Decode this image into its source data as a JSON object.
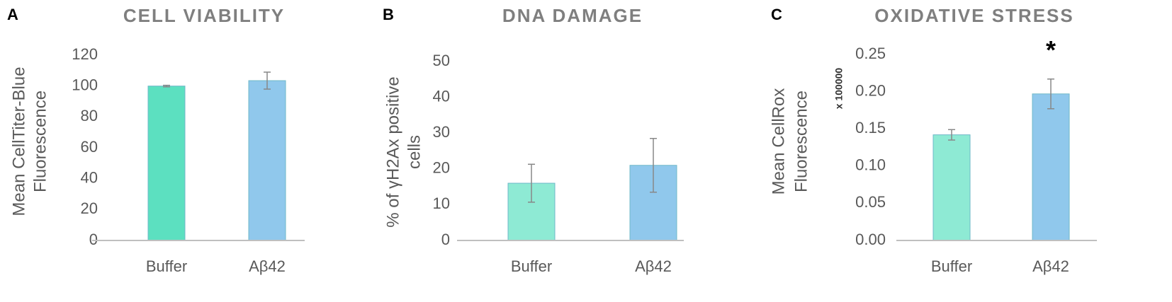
{
  "chart_data": [
    {
      "type": "bar",
      "panel_label": "A",
      "title": "CELL VIABILITY",
      "ylabel": [
        "Mean CellTiter-Blue",
        "Fluorescence"
      ],
      "categories": [
        "Buffer",
        "Aβ42"
      ],
      "values": [
        100,
        103.5
      ],
      "errors": [
        0.5,
        5.5
      ],
      "colors": [
        "#5ce0c0",
        "#90c8ec"
      ],
      "ylim": [
        0,
        120
      ],
      "yticks": [
        0,
        20,
        40,
        60,
        80,
        100,
        120
      ]
    },
    {
      "type": "bar",
      "panel_label": "B",
      "title": "DNA DAMAGE",
      "ylabel": [
        "% of γH2Ax positive",
        "cells"
      ],
      "categories": [
        "Buffer",
        "Aβ42"
      ],
      "values": [
        16,
        21
      ],
      "errors": [
        5.3,
        7.5
      ],
      "colors": [
        "#8eead4",
        "#90c8ec"
      ],
      "ylim": [
        0,
        50
      ],
      "yticks": [
        0,
        10,
        20,
        30,
        40,
        50
      ]
    },
    {
      "type": "bar",
      "panel_label": "C",
      "title": "OXIDATIVE STRESS",
      "ylabel": [
        "Mean CellRox",
        "Fluorescence"
      ],
      "axis_multiplier": "x 100000",
      "annotations": [
        {
          "category": 1,
          "text": "*"
        }
      ],
      "categories": [
        "Buffer",
        "Aβ42"
      ],
      "values": [
        0.142,
        0.197
      ],
      "errors": [
        0.007,
        0.02
      ],
      "colors": [
        "#8eead4",
        "#90c8ec"
      ],
      "ylim": [
        0,
        0.25
      ],
      "yticks": [
        {
          "value": 0,
          "label": "0.00"
        },
        {
          "value": 0.05,
          "label": "0.05"
        },
        {
          "value": 0.1,
          "label": "0.10"
        },
        {
          "value": 0.15,
          "label": "0.15"
        },
        {
          "value": 0.2,
          "label": "0.20"
        },
        {
          "value": 0.25,
          "label": "0.25"
        }
      ]
    }
  ]
}
